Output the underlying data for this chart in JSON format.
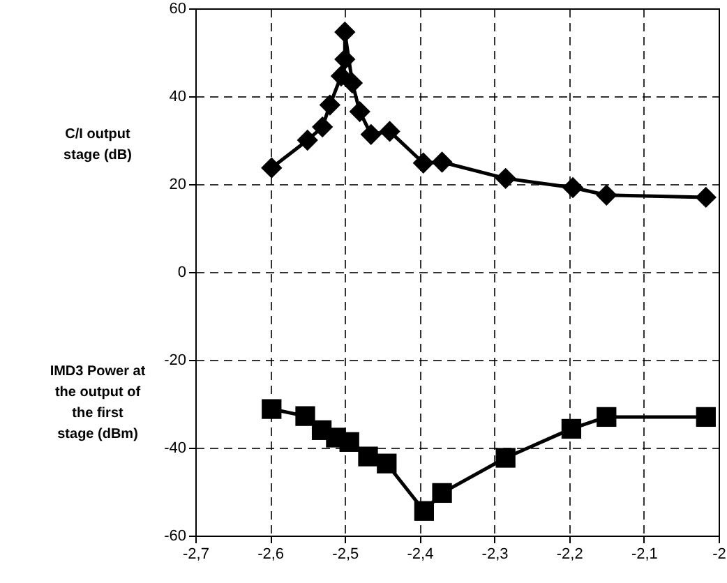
{
  "chart_data": {
    "type": "line",
    "xlim": [
      -2.7,
      -2.0
    ],
    "xticks": [
      {
        "value": -2.7,
        "label": "-2,7"
      },
      {
        "value": -2.6,
        "label": "-2,6"
      },
      {
        "value": -2.5,
        "label": "-2,5"
      },
      {
        "value": -2.4,
        "label": "-2,4"
      },
      {
        "value": -2.3,
        "label": "-2,3"
      },
      {
        "value": -2.2,
        "label": "-2,2"
      },
      {
        "value": -2.1,
        "label": "-2,1"
      },
      -2
    ],
    "annotations": [
      "C/I output stage (dB)",
      "IMD3 Power at the output of the first stage (dBm)"
    ],
    "ylim": [
      -60,
      60
    ],
    "yticks": [
      -60,
      -40,
      -20,
      0,
      20,
      40,
      60
    ],
    "grid": true,
    "line_style": "solid",
    "series": [
      {
        "color": "#000000",
        "marker": "diamond",
        "x": [
          -2.598,
          -2.55,
          -2.53,
          -2.52,
          -2.505,
          -2.5,
          -2.5,
          -2.49,
          -2.48,
          -2.465,
          -2.44,
          -2.395,
          -2.37,
          -2.285,
          -2.195,
          -2.15,
          -2.017
        ],
        "values": [
          23.7,
          30,
          33,
          38,
          44.6,
          48.4,
          54.6,
          43,
          36.5,
          31.3,
          32,
          24.8,
          25,
          21.3,
          19.2,
          17.5,
          17
        ]
      },
      {
        "color": "#000000",
        "marker": "square",
        "x": [
          -2.598,
          -2.553,
          -2.531,
          -2.512,
          -2.494,
          -2.469,
          -2.444,
          -2.394,
          -2.37,
          -2.285,
          -2.197,
          -2.15,
          -2.017
        ],
        "values": [
          -31.2,
          -32.8,
          -36,
          -37.7,
          -38.7,
          -42,
          -43.6,
          -54.4,
          -50.3,
          -42.3,
          -35.7,
          -33,
          -33
        ]
      }
    ]
  }
}
